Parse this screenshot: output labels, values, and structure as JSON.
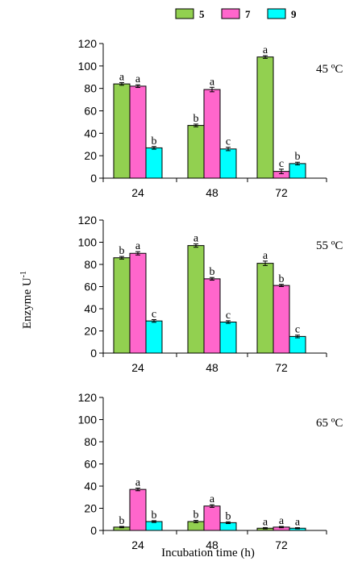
{
  "chart_data": {
    "type": "bar",
    "ylabel": "Enzyme U",
    "ylabel_superscript": "-1",
    "xlabel": "Incubation time (h)",
    "legend": {
      "placement": "top",
      "items": [
        {
          "name": "5",
          "color": "#92d050"
        },
        {
          "name": "7",
          "color": "#ff66cc"
        },
        {
          "name": "9",
          "color": "#00ffff"
        }
      ]
    },
    "panels": [
      {
        "temperature": "45 ºC",
        "categories": [
          "24",
          "48",
          "72"
        ],
        "ylim": [
          0,
          120
        ],
        "yticks": [
          "0",
          "20",
          "40",
          "60",
          "80",
          "100",
          "120"
        ],
        "series": [
          {
            "name": "5",
            "values": [
              84,
              47,
              108
            ],
            "errors": [
              1.2,
              1.2,
              1.2
            ],
            "letters": [
              "a",
              "b",
              "a"
            ]
          },
          {
            "name": "7",
            "values": [
              82,
              79,
              6
            ],
            "errors": [
              1.2,
              2,
              2
            ],
            "letters": [
              "a",
              "a",
              "c"
            ]
          },
          {
            "name": "9",
            "values": [
              27,
              26,
              13
            ],
            "errors": [
              1.2,
              1.5,
              1.2
            ],
            "letters": [
              "b",
              "c",
              "b"
            ]
          }
        ]
      },
      {
        "temperature": "55 ºC",
        "categories": [
          "24",
          "48",
          "72"
        ],
        "ylim": [
          0,
          120
        ],
        "yticks": [
          "0",
          "20",
          "40",
          "60",
          "80",
          "100",
          "120"
        ],
        "series": [
          {
            "name": "5",
            "values": [
              86,
              97,
              81
            ],
            "errors": [
              1.2,
              1.5,
              2
            ],
            "letters": [
              "b",
              "a",
              "a"
            ]
          },
          {
            "name": "7",
            "values": [
              90,
              67,
              61
            ],
            "errors": [
              1.5,
              1.2,
              1
            ],
            "letters": [
              "a",
              "b",
              "b"
            ]
          },
          {
            "name": "9",
            "values": [
              29,
              28,
              15
            ],
            "errors": [
              1.2,
              1.2,
              1.2
            ],
            "letters": [
              "c",
              "c",
              "c"
            ]
          }
        ]
      },
      {
        "temperature": "65 ºC",
        "categories": [
          "24",
          "48",
          "72"
        ],
        "ylim": [
          0,
          120
        ],
        "yticks": [
          "0",
          "20",
          "40",
          "60",
          "80",
          "100",
          "120"
        ],
        "series": [
          {
            "name": "5",
            "values": [
              3,
              8,
              2
            ],
            "errors": [
              0.6,
              1,
              0.6
            ],
            "letters": [
              "b",
              "b",
              "a"
            ]
          },
          {
            "name": "7",
            "values": [
              37,
              22,
              3
            ],
            "errors": [
              1.2,
              1.2,
              0.6
            ],
            "letters": [
              "a",
              "a",
              "a"
            ]
          },
          {
            "name": "9",
            "values": [
              8,
              7,
              2
            ],
            "errors": [
              0.8,
              0.8,
              0.5
            ],
            "letters": [
              "b",
              "b",
              "a"
            ]
          }
        ]
      }
    ]
  }
}
